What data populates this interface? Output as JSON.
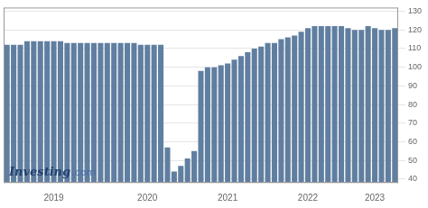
{
  "chart_data": {
    "type": "bar",
    "categories": [
      null,
      null,
      null,
      null,
      null,
      null,
      null,
      "2019",
      null,
      null,
      null,
      null,
      null,
      null,
      null,
      null,
      null,
      null,
      null,
      null,
      null,
      "2020",
      null,
      null,
      null,
      null,
      null,
      null,
      null,
      null,
      null,
      null,
      null,
      "2021",
      null,
      null,
      null,
      null,
      null,
      null,
      null,
      null,
      null,
      null,
      null,
      "2022",
      null,
      null,
      null,
      null,
      null,
      null,
      null,
      null,
      null,
      "2023",
      null,
      null,
      null
    ],
    "values": [
      112,
      112,
      112,
      114,
      114,
      114,
      114,
      114,
      114,
      113,
      113,
      113,
      113,
      113,
      113,
      113,
      113,
      113,
      113,
      113,
      112,
      112,
      112,
      112,
      57,
      44,
      47,
      51,
      55,
      98,
      100,
      100,
      101,
      102,
      104,
      106,
      108,
      110,
      111,
      113,
      113,
      115,
      116,
      117,
      119,
      121,
      122,
      122,
      122,
      122,
      122,
      121,
      120,
      120,
      122,
      121,
      120,
      120,
      121
    ],
    "color": "#607fa0",
    "ylim": [
      38,
      132
    ],
    "yticks": [
      40,
      50,
      60,
      70,
      80,
      90,
      100,
      110,
      120,
      130
    ],
    "grid": true,
    "annotations": [
      "Investing",
      ".com"
    ]
  }
}
